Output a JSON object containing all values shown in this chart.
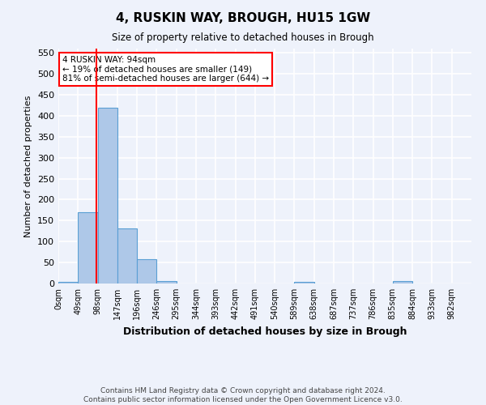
{
  "title": "4, RUSKIN WAY, BROUGH, HU15 1GW",
  "subtitle": "Size of property relative to detached houses in Brough",
  "xlabel": "Distribution of detached houses by size in Brough",
  "ylabel": "Number of detached properties",
  "bar_values": [
    3,
    170,
    420,
    132,
    57,
    5,
    0,
    0,
    0,
    0,
    0,
    0,
    3,
    0,
    0,
    0,
    0,
    5,
    0,
    0,
    0
  ],
  "bin_edges": [
    0,
    49,
    98,
    147,
    196,
    245,
    294,
    343,
    392,
    441,
    490,
    539,
    588,
    637,
    686,
    735,
    784,
    833,
    882,
    931,
    980,
    1029
  ],
  "tick_labels": [
    "0sqm",
    "49sqm",
    "98sqm",
    "147sqm",
    "196sqm",
    "246sqm",
    "295sqm",
    "344sqm",
    "393sqm",
    "442sqm",
    "491sqm",
    "540sqm",
    "589sqm",
    "638sqm",
    "687sqm",
    "737sqm",
    "786sqm",
    "835sqm",
    "884sqm",
    "933sqm",
    "982sqm"
  ],
  "bar_color": "#aec8e8",
  "bar_edge_color": "#5a9fd4",
  "vline_x": 94,
  "vline_color": "red",
  "annotation_text": "4 RUSKIN WAY: 94sqm\n← 19% of detached houses are smaller (149)\n81% of semi-detached houses are larger (644) →",
  "annotation_box_color": "white",
  "annotation_box_edge_color": "red",
  "ylim": [
    0,
    560
  ],
  "yticks": [
    0,
    50,
    100,
    150,
    200,
    250,
    300,
    350,
    400,
    450,
    500,
    550
  ],
  "background_color": "#eef2fb",
  "grid_color": "white",
  "footer_text": "Contains HM Land Registry data © Crown copyright and database right 2024.\nContains public sector information licensed under the Open Government Licence v3.0.",
  "figsize": [
    6.0,
    5.0
  ],
  "dpi": 100
}
